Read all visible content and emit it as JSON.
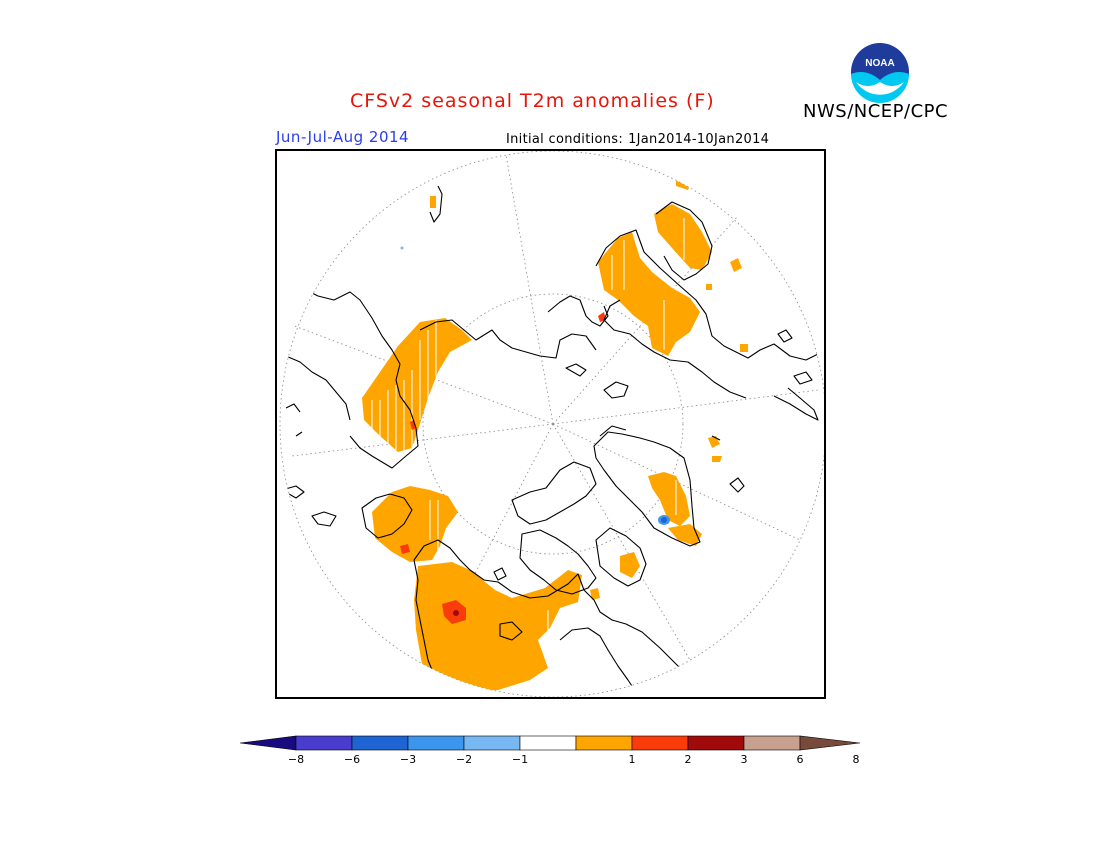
{
  "header": {
    "title": "CFSv2 seasonal T2m anomalies (F)",
    "agency": "NWS/NCEP/CPC",
    "logo_text": "NOAA",
    "period": "Jun-Jul-Aug 2014",
    "initial_conditions_label": "Initial conditions:",
    "initial_conditions_value": "1Jan2014-10Jan2014"
  },
  "map": {
    "projection": "north-polar-stereographic",
    "icons": [
      "noaa-logo"
    ]
  },
  "legend": {
    "tick_labels": [
      "-8",
      "-6",
      "-3",
      "-2",
      "-1",
      "1",
      "2",
      "3",
      "6",
      "8"
    ],
    "bins": [
      {
        "color": "#1a0a80"
      },
      {
        "color": "#4a3ccc"
      },
      {
        "color": "#1e64d2"
      },
      {
        "color": "#3c96ee"
      },
      {
        "color": "#78b8f2"
      },
      {
        "color": "#ffffff"
      },
      {
        "color": "#ffa500"
      },
      {
        "color": "#fa3c0a"
      },
      {
        "color": "#a00a0a"
      },
      {
        "color": "#c8a090"
      },
      {
        "color": "#784a3c"
      }
    ]
  }
}
